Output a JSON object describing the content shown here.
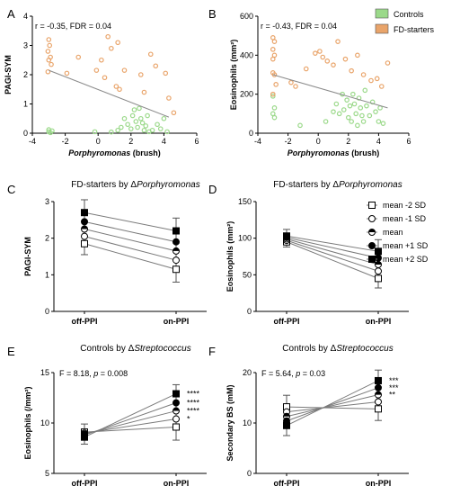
{
  "chart_data": [
    {
      "id": "A",
      "panel_letter": "A",
      "type": "scatter",
      "xlabel": "Porphyromonas",
      "xlabel_suffix": " (brush)",
      "ylabel": "PAGI-SYM",
      "xlim": [
        -4,
        6
      ],
      "ylim": [
        0,
        4
      ],
      "xticks": [
        -4,
        -2,
        0,
        2,
        4,
        6
      ],
      "yticks": [
        0,
        1,
        2,
        3,
        4
      ],
      "stat": "r = -0.35, FDR = 0.04",
      "trend": {
        "x": [
          -3,
          4.3
        ],
        "y": [
          2.15,
          0.55
        ]
      },
      "series": [
        {
          "key": "controls",
          "color": "#9bd98a",
          "points": [
            [
              -3,
              0.05
            ],
            [
              -3,
              0.12
            ],
            [
              -2.9,
              0.02
            ],
            [
              -2.8,
              0.08
            ],
            [
              -0.2,
              0.05
            ],
            [
              0.8,
              0.04
            ],
            [
              1.2,
              0.1
            ],
            [
              1.4,
              0.2
            ],
            [
              1.6,
              0.5
            ],
            [
              1.8,
              0.3
            ],
            [
              2.0,
              0.15
            ],
            [
              2.1,
              0.6
            ],
            [
              2.2,
              0.8
            ],
            [
              2.3,
              0.4
            ],
            [
              2.4,
              0.2
            ],
            [
              2.5,
              0.85
            ],
            [
              2.6,
              0.5
            ],
            [
              2.7,
              0.35
            ],
            [
              2.8,
              0.1
            ],
            [
              2.9,
              0.25
            ],
            [
              3.0,
              0.6
            ],
            [
              3.1,
              0.05
            ],
            [
              3.3,
              0.1
            ],
            [
              3.6,
              0.3
            ],
            [
              3.8,
              0.15
            ],
            [
              4.0,
              0.5
            ],
            [
              4.2,
              0.05
            ]
          ]
        },
        {
          "key": "fd",
          "color": "#e9a46a",
          "points": [
            [
              -3,
              3.2
            ],
            [
              -2.95,
              3.0
            ],
            [
              -3.05,
              2.8
            ],
            [
              -2.9,
              2.6
            ],
            [
              -3,
              2.5
            ],
            [
              -2.85,
              2.35
            ],
            [
              -3.05,
              2.1
            ],
            [
              -1.9,
              2.05
            ],
            [
              -1.2,
              2.6
            ],
            [
              -0.1,
              2.15
            ],
            [
              0.2,
              2.5
            ],
            [
              0.4,
              1.9
            ],
            [
              0.6,
              3.3
            ],
            [
              0.8,
              2.9
            ],
            [
              1.1,
              1.6
            ],
            [
              1.2,
              3.1
            ],
            [
              1.3,
              1.5
            ],
            [
              1.6,
              2.15
            ],
            [
              2.6,
              2.0
            ],
            [
              2.8,
              1.4
            ],
            [
              3.2,
              2.7
            ],
            [
              3.5,
              2.3
            ],
            [
              4.1,
              2.05
            ],
            [
              4.3,
              1.2
            ],
            [
              4.6,
              0.7
            ]
          ]
        }
      ]
    },
    {
      "id": "B",
      "panel_letter": "B",
      "type": "scatter",
      "xlabel": "Porphyromonas",
      "xlabel_suffix": " (brush)",
      "ylabel": "Eosinophils (mm²)",
      "xlim": [
        -4,
        6
      ],
      "ylim": [
        0,
        600
      ],
      "xticks": [
        -4,
        -2,
        0,
        2,
        4,
        6
      ],
      "yticks": [
        0,
        200,
        400,
        600
      ],
      "stat": "r = -0.43, FDR = 0.04",
      "legend": {
        "position": "top-right",
        "entries": [
          {
            "label": "Controls",
            "color": "#9bd98a"
          },
          {
            "label": "FD-starters",
            "color": "#e9a46a"
          }
        ]
      },
      "trend": {
        "x": [
          -3,
          4.6
        ],
        "y": [
          300,
          130
        ]
      },
      "series": [
        {
          "key": "controls",
          "color": "#9bd98a",
          "points": [
            [
              -3,
              190
            ],
            [
              -2.9,
              130
            ],
            [
              -3,
              100
            ],
            [
              -2.9,
              80
            ],
            [
              -1.2,
              40
            ],
            [
              0.5,
              60
            ],
            [
              1.0,
              110
            ],
            [
              1.2,
              150
            ],
            [
              1.4,
              100
            ],
            [
              1.6,
              200
            ],
            [
              1.7,
              120
            ],
            [
              1.9,
              170
            ],
            [
              2.0,
              80
            ],
            [
              2.1,
              140
            ],
            [
              2.2,
              60
            ],
            [
              2.3,
              200
            ],
            [
              2.4,
              150
            ],
            [
              2.5,
              100
            ],
            [
              2.6,
              40
            ],
            [
              2.7,
              180
            ],
            [
              2.8,
              130
            ],
            [
              2.9,
              90
            ],
            [
              3.0,
              60
            ],
            [
              3.1,
              220
            ],
            [
              3.2,
              140
            ],
            [
              3.4,
              90
            ],
            [
              3.6,
              160
            ],
            [
              3.8,
              110
            ],
            [
              4.0,
              60
            ],
            [
              4.1,
              130
            ],
            [
              4.3,
              50
            ]
          ]
        },
        {
          "key": "fd",
          "color": "#e9a46a",
          "points": [
            [
              -3,
              490
            ],
            [
              -2.9,
              470
            ],
            [
              -3,
              430
            ],
            [
              -2.9,
              400
            ],
            [
              -3,
              380
            ],
            [
              -3,
              310
            ],
            [
              -2.9,
              300
            ],
            [
              -2.8,
              250
            ],
            [
              -3,
              200
            ],
            [
              -1.8,
              260
            ],
            [
              -1.5,
              240
            ],
            [
              -0.8,
              330
            ],
            [
              -0.2,
              410
            ],
            [
              0.1,
              420
            ],
            [
              0.3,
              390
            ],
            [
              0.6,
              370
            ],
            [
              1.0,
              350
            ],
            [
              1.3,
              470
            ],
            [
              1.8,
              380
            ],
            [
              2.2,
              320
            ],
            [
              2.6,
              400
            ],
            [
              3.0,
              300
            ],
            [
              3.5,
              270
            ],
            [
              3.9,
              280
            ],
            [
              4.2,
              240
            ],
            [
              4.6,
              360
            ]
          ]
        }
      ]
    },
    {
      "id": "C",
      "panel_letter": "C",
      "type": "line",
      "title": "FD-starters by ",
      "title_italic": "Porphyromonas",
      "title_delta": "Δ",
      "categories": [
        "off-PPI",
        "on-PPI"
      ],
      "ylabel": "PAGI-SYM",
      "ylim": [
        0,
        3
      ],
      "yticks": [
        0,
        1,
        2,
        3
      ],
      "error_bars": [
        [
          1.55,
          3.05
        ],
        [
          0.8,
          2.55
        ]
      ],
      "series": [
        {
          "key": "m2",
          "marker": "square-open",
          "values": [
            1.85,
            1.15
          ]
        },
        {
          "key": "m1",
          "marker": "circle-open",
          "values": [
            2.05,
            1.4
          ]
        },
        {
          "key": "m0",
          "marker": "circle-half",
          "values": [
            2.25,
            1.65
          ]
        },
        {
          "key": "p1",
          "marker": "circle-filled",
          "values": [
            2.45,
            1.9
          ]
        },
        {
          "key": "p2",
          "marker": "square-filled",
          "values": [
            2.7,
            2.2
          ]
        }
      ]
    },
    {
      "id": "D",
      "panel_letter": "D",
      "type": "line",
      "title": "FD-starters by ",
      "title_italic": "Porphyromonas",
      "title_delta": "Δ",
      "categories": [
        "off-PPI",
        "on-PPI"
      ],
      "ylabel": "Eosinophils (mm²)",
      "ylim": [
        0,
        150
      ],
      "yticks": [
        0,
        50,
        100,
        150
      ],
      "error_bars": [
        [
          88,
          112
        ],
        [
          32,
          98
        ]
      ],
      "legend": {
        "position": "right",
        "entries": [
          {
            "label": "mean -2 SD",
            "marker": "square-open"
          },
          {
            "label": "mean -1 SD",
            "marker": "circle-open"
          },
          {
            "label": "mean",
            "marker": "circle-half"
          },
          {
            "label": "mean +1 SD",
            "marker": "circle-filled"
          },
          {
            "label": "mean +2 SD",
            "marker": "square-filled"
          }
        ]
      },
      "series": [
        {
          "key": "m2",
          "marker": "square-open",
          "values": [
            95,
            45
          ]
        },
        {
          "key": "m1",
          "marker": "circle-open",
          "values": [
            97,
            55
          ]
        },
        {
          "key": "m0",
          "marker": "circle-half",
          "values": [
            99,
            64
          ]
        },
        {
          "key": "p1",
          "marker": "circle-filled",
          "values": [
            101,
            73
          ]
        },
        {
          "key": "p2",
          "marker": "square-filled",
          "values": [
            103,
            82
          ]
        }
      ]
    },
    {
      "id": "E",
      "panel_letter": "E",
      "type": "line",
      "title": "Controls by ",
      "title_italic": "Streptococcus",
      "title_delta": "Δ",
      "categories": [
        "off-PPI",
        "on-PPI"
      ],
      "ylabel": "Eosinophils (/mm²)",
      "ylim": [
        5,
        15
      ],
      "yticks": [
        5,
        10,
        15
      ],
      "stat_parts": [
        "F = 8.18, ",
        "p",
        " = 0.008"
      ],
      "error_bars": [
        [
          7.9,
          9.9
        ],
        [
          8.3,
          13.8
        ]
      ],
      "significance": [
        "****",
        "****",
        "****",
        "*"
      ],
      "series": [
        {
          "key": "m2",
          "marker": "square-open",
          "values": [
            9.1,
            9.6
          ]
        },
        {
          "key": "m1",
          "marker": "circle-open",
          "values": [
            9.0,
            10.4
          ]
        },
        {
          "key": "m0",
          "marker": "circle-half",
          "values": [
            8.9,
            11.2
          ]
        },
        {
          "key": "p1",
          "marker": "circle-filled",
          "values": [
            8.8,
            12.0
          ]
        },
        {
          "key": "p2",
          "marker": "square-filled",
          "values": [
            8.6,
            12.9
          ]
        }
      ]
    },
    {
      "id": "F",
      "panel_letter": "F",
      "type": "line",
      "title": "Controls by ",
      "title_italic": "Streptococcus",
      "title_delta": "Δ",
      "categories": [
        "off-PPI",
        "on-PPI"
      ],
      "ylabel": "Secondary BS (mM)",
      "ylim": [
        0,
        20
      ],
      "yticks": [
        0,
        10,
        20
      ],
      "stat_parts": [
        "F = 5.64, ",
        "p",
        " = 0.03"
      ],
      "error_bars": [
        [
          7.5,
          15.5
        ],
        [
          10.5,
          20.5
        ]
      ],
      "significance": [
        "***",
        "***",
        "**"
      ],
      "series": [
        {
          "key": "m2",
          "marker": "square-open",
          "values": [
            13.2,
            12.8
          ]
        },
        {
          "key": "m1",
          "marker": "circle-open",
          "values": [
            12.2,
            14.2
          ]
        },
        {
          "key": "m0",
          "marker": "circle-half",
          "values": [
            11.3,
            15.6
          ]
        },
        {
          "key": "p1",
          "marker": "circle-filled",
          "values": [
            10.4,
            17.0
          ]
        },
        {
          "key": "p2",
          "marker": "square-filled",
          "values": [
            9.5,
            18.4
          ]
        }
      ]
    }
  ]
}
